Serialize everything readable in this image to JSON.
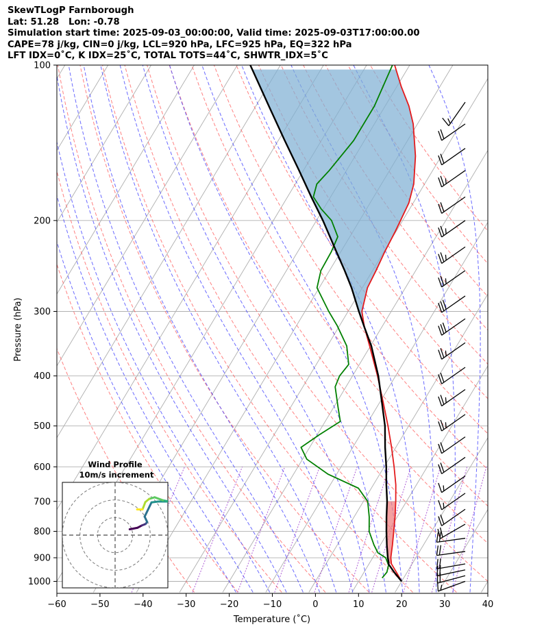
{
  "header": {
    "station_line": "SkewTLogP Farnborough",
    "coord_line": "Lat: 51.28   Lon: -0.78",
    "time_line": "Simulation start time: 2025-09-03_00:00:00, Valid time: 2025-09-03T17:00:00.00",
    "indices_line1": "CAPE=78 j/kg, CIN=0 j/kg, LCL=920 hPa, LFC=925 hPa, EQ=322 hPa",
    "indices_line2": "LFT IDX=0˚C, K IDX=25˚C, TOTAL TOTS=44˚C, SHWTR_IDX=5˚C"
  },
  "chart_data": {
    "type": "skewt",
    "xlabel": "Temperature (˚C)",
    "ylabel": "Pressure (hPa)",
    "xlim": [
      -60,
      40
    ],
    "ylim": [
      1050,
      100
    ],
    "x_ticks": [
      -60,
      -50,
      -40,
      -30,
      -20,
      -10,
      0,
      10,
      20,
      30,
      40
    ],
    "x_tick_labels": [
      "−60",
      "−50",
      "−40",
      "−30",
      "−20",
      "−10",
      "0",
      "10",
      "20",
      "30",
      "40"
    ],
    "y_ticks": [
      100,
      200,
      300,
      400,
      500,
      600,
      700,
      800,
      900,
      1000
    ],
    "y_tick_labels": [
      "100",
      "200",
      "300",
      "400",
      "500",
      "600",
      "700",
      "800",
      "900",
      "1000"
    ],
    "colors": {
      "temperature": "#e31a1c",
      "dewpoint": "#008000",
      "parcel": "#000000",
      "cape_fill": "#7fb0d4",
      "cin_fill": "#f08080",
      "dry_adiabat": "#ff5555",
      "moist_adiabat": "#4444ff",
      "mixing_ratio": "#9933cc",
      "isotherm": "#999999"
    },
    "temperature": [
      {
        "p": 1000,
        "t": 20.0
      },
      {
        "p": 960,
        "t": 17.5
      },
      {
        "p": 925,
        "t": 15.2
      },
      {
        "p": 900,
        "t": 14.2
      },
      {
        "p": 850,
        "t": 12.8
      },
      {
        "p": 800,
        "t": 11.2
      },
      {
        "p": 750,
        "t": 9.5
      },
      {
        "p": 700,
        "t": 7.5
      },
      {
        "p": 650,
        "t": 5.2
      },
      {
        "p": 600,
        "t": 2.3
      },
      {
        "p": 550,
        "t": -1.0
      },
      {
        "p": 500,
        "t": -4.8
      },
      {
        "p": 450,
        "t": -9.2
      },
      {
        "p": 400,
        "t": -14.2
      },
      {
        "p": 350,
        "t": -20.2
      },
      {
        "p": 322,
        "t": -24.0
      },
      {
        "p": 300,
        "t": -26.8
      },
      {
        "p": 270,
        "t": -28.8
      },
      {
        "p": 250,
        "t": -29.2
      },
      {
        "p": 230,
        "t": -29.8
      },
      {
        "p": 210,
        "t": -30.2
      },
      {
        "p": 200,
        "t": -30.5
      },
      {
        "p": 185,
        "t": -31.0
      },
      {
        "p": 170,
        "t": -32.5
      },
      {
        "p": 150,
        "t": -36.0
      },
      {
        "p": 130,
        "t": -41.0
      },
      {
        "p": 120,
        "t": -44.5
      },
      {
        "p": 110,
        "t": -49.0
      },
      {
        "p": 100,
        "t": -53.5
      }
    ],
    "dewpoint": [
      {
        "p": 985,
        "t": 15.0
      },
      {
        "p": 960,
        "t": 15.3
      },
      {
        "p": 930,
        "t": 14.7
      },
      {
        "p": 900,
        "t": 13.0
      },
      {
        "p": 880,
        "t": 10.5
      },
      {
        "p": 850,
        "t": 8.5
      },
      {
        "p": 800,
        "t": 5.5
      },
      {
        "p": 750,
        "t": 3.5
      },
      {
        "p": 700,
        "t": 1.0
      },
      {
        "p": 660,
        "t": -3.0
      },
      {
        "p": 620,
        "t": -12.0
      },
      {
        "p": 580,
        "t": -19.0
      },
      {
        "p": 550,
        "t": -22.0
      },
      {
        "p": 520,
        "t": -19.5
      },
      {
        "p": 490,
        "t": -16.5
      },
      {
        "p": 460,
        "t": -19.0
      },
      {
        "p": 420,
        "t": -22.5
      },
      {
        "p": 400,
        "t": -23.0
      },
      {
        "p": 380,
        "t": -22.5
      },
      {
        "p": 350,
        "t": -25.5
      },
      {
        "p": 320,
        "t": -30.5
      },
      {
        "p": 300,
        "t": -34.5
      },
      {
        "p": 270,
        "t": -40.5
      },
      {
        "p": 250,
        "t": -42.0
      },
      {
        "p": 230,
        "t": -42.2
      },
      {
        "p": 215,
        "t": -42.8
      },
      {
        "p": 200,
        "t": -46.5
      },
      {
        "p": 190,
        "t": -50.5
      },
      {
        "p": 180,
        "t": -54.0
      },
      {
        "p": 170,
        "t": -55.0
      },
      {
        "p": 160,
        "t": -54.0
      },
      {
        "p": 140,
        "t": -52.5
      },
      {
        "p": 120,
        "t": -52.5
      },
      {
        "p": 100,
        "t": -54.0
      }
    ],
    "parcel": [
      {
        "p": 1000,
        "t": 20.0
      },
      {
        "p": 960,
        "t": 17.0
      },
      {
        "p": 925,
        "t": 14.5
      },
      {
        "p": 920,
        "t": 14.4
      },
      {
        "p": 900,
        "t": 13.5
      },
      {
        "p": 850,
        "t": 11.5
      },
      {
        "p": 800,
        "t": 9.5
      },
      {
        "p": 750,
        "t": 7.5
      },
      {
        "p": 700,
        "t": 5.5
      },
      {
        "p": 650,
        "t": 3.0
      },
      {
        "p": 600,
        "t": 0.5
      },
      {
        "p": 550,
        "t": -2.5
      },
      {
        "p": 500,
        "t": -5.5
      },
      {
        "p": 450,
        "t": -9.5
      },
      {
        "p": 400,
        "t": -14.0
      },
      {
        "p": 350,
        "t": -19.8
      },
      {
        "p": 322,
        "t": -24.0
      },
      {
        "p": 300,
        "t": -27.5
      },
      {
        "p": 270,
        "t": -32.5
      },
      {
        "p": 250,
        "t": -36.5
      },
      {
        "p": 230,
        "t": -41.0
      },
      {
        "p": 200,
        "t": -48.5
      },
      {
        "p": 180,
        "t": -54.5
      },
      {
        "p": 160,
        "t": -61.0
      },
      {
        "p": 140,
        "t": -68.5
      },
      {
        "p": 120,
        "t": -77.0
      },
      {
        "p": 100,
        "t": -87.0
      }
    ],
    "wind_barbs": [
      {
        "p": 1000,
        "speed_kt": 15,
        "dir_deg": 250
      },
      {
        "p": 975,
        "speed_kt": 20,
        "dir_deg": 255
      },
      {
        "p": 950,
        "speed_kt": 20,
        "dir_deg": 258
      },
      {
        "p": 925,
        "speed_kt": 20,
        "dir_deg": 260
      },
      {
        "p": 875,
        "speed_kt": 20,
        "dir_deg": 262
      },
      {
        "p": 825,
        "speed_kt": 20,
        "dir_deg": 262
      },
      {
        "p": 775,
        "speed_kt": 20,
        "dir_deg": 240
      },
      {
        "p": 725,
        "speed_kt": 20,
        "dir_deg": 235
      },
      {
        "p": 675,
        "speed_kt": 15,
        "dir_deg": 235
      },
      {
        "p": 625,
        "speed_kt": 15,
        "dir_deg": 235
      },
      {
        "p": 575,
        "speed_kt": 20,
        "dir_deg": 235
      },
      {
        "p": 525,
        "speed_kt": 20,
        "dir_deg": 235
      },
      {
        "p": 475,
        "speed_kt": 25,
        "dir_deg": 235
      },
      {
        "p": 425,
        "speed_kt": 25,
        "dir_deg": 235
      },
      {
        "p": 385,
        "speed_kt": 20,
        "dir_deg": 235
      },
      {
        "p": 345,
        "speed_kt": 25,
        "dir_deg": 235
      },
      {
        "p": 310,
        "speed_kt": 30,
        "dir_deg": 235
      },
      {
        "p": 280,
        "speed_kt": 30,
        "dir_deg": 235
      },
      {
        "p": 250,
        "speed_kt": 25,
        "dir_deg": 235
      },
      {
        "p": 225,
        "speed_kt": 25,
        "dir_deg": 235
      },
      {
        "p": 200,
        "speed_kt": 25,
        "dir_deg": 235
      },
      {
        "p": 180,
        "speed_kt": 20,
        "dir_deg": 235
      },
      {
        "p": 160,
        "speed_kt": 25,
        "dir_deg": 235
      },
      {
        "p": 145,
        "speed_kt": 20,
        "dir_deg": 235
      },
      {
        "p": 130,
        "speed_kt": 20,
        "dir_deg": 235
      },
      {
        "p": 118,
        "speed_kt": 15,
        "dir_deg": 215
      }
    ],
    "hodograph": {
      "title": "Wind Profile",
      "subtitle": "10m/s increment",
      "rings_ms": [
        10,
        20,
        30
      ],
      "range_ms": 30,
      "points": [
        {
          "u": 8.3,
          "v": 3.3
        },
        {
          "u": 12.8,
          "v": 4.2
        },
        {
          "u": 15.2,
          "v": 5.5
        },
        {
          "u": 17.0,
          "v": 6.2
        },
        {
          "u": 17.5,
          "v": 6.5
        },
        {
          "u": 18.2,
          "v": 7.5
        },
        {
          "u": 16.8,
          "v": 10.5
        },
        {
          "u": 20.7,
          "v": 18.6
        },
        {
          "u": 24.4,
          "v": 19.1
        },
        {
          "u": 30.6,
          "v": 19.1
        },
        {
          "u": 27.2,
          "v": 19.8
        },
        {
          "u": 22.5,
          "v": 21.5
        },
        {
          "u": 19.4,
          "v": 20.6
        },
        {
          "u": 17.2,
          "v": 18.8
        },
        {
          "u": 15.6,
          "v": 14.6
        },
        {
          "u": 12.5,
          "v": 14.6
        }
      ]
    }
  }
}
